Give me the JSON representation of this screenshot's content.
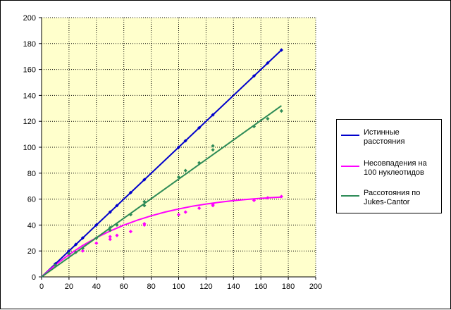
{
  "chart_data": {
    "type": "line",
    "title": "",
    "xlabel": "",
    "ylabel": "",
    "xlim": [
      0,
      200
    ],
    "ylim": [
      0,
      200
    ],
    "xticks": [
      "0",
      "20",
      "40",
      "60",
      "80",
      "100",
      "120",
      "140",
      "160",
      "180",
      "200"
    ],
    "yticks": [
      "0",
      "20",
      "40",
      "60",
      "80",
      "100",
      "120",
      "140",
      "160",
      "180",
      "200"
    ],
    "grid": true,
    "plot_background": "#ffffcc",
    "legend_position": "right",
    "series": [
      {
        "name": "Истинные\nрасстояния",
        "color": "#0000cc",
        "points": [
          [
            10,
            10
          ],
          [
            20,
            20
          ],
          [
            25,
            25
          ],
          [
            30,
            30
          ],
          [
            40,
            40
          ],
          [
            50,
            50
          ],
          [
            55,
            55
          ],
          [
            65,
            65
          ],
          [
            75,
            75
          ],
          [
            100,
            100
          ],
          [
            105,
            105
          ],
          [
            115,
            115
          ],
          [
            125,
            125
          ],
          [
            155,
            155
          ],
          [
            165,
            165
          ],
          [
            175,
            175
          ]
        ],
        "trend": [
          [
            0,
            0
          ],
          [
            175,
            175
          ]
        ]
      },
      {
        "name": "Несовпадения на\n100 нуклеотидов",
        "color": "#ff00ff",
        "points": [
          [
            10,
            9
          ],
          [
            20,
            17
          ],
          [
            25,
            19
          ],
          [
            30,
            20
          ],
          [
            40,
            26
          ],
          [
            50,
            29
          ],
          [
            50,
            31
          ],
          [
            55,
            32
          ],
          [
            65,
            35
          ],
          [
            75,
            40
          ],
          [
            75,
            41
          ],
          [
            100,
            48
          ],
          [
            105,
            50
          ],
          [
            115,
            53
          ],
          [
            125,
            55
          ],
          [
            125,
            56
          ],
          [
            155,
            59
          ],
          [
            165,
            61
          ],
          [
            175,
            62
          ]
        ],
        "trend": [
          [
            0,
            0
          ],
          [
            10,
            9.2
          ],
          [
            20,
            17.2
          ],
          [
            30,
            24.2
          ],
          [
            40,
            30.2
          ],
          [
            50,
            35.4
          ],
          [
            60,
            39.9
          ],
          [
            70,
            43.8
          ],
          [
            80,
            47.1
          ],
          [
            90,
            50
          ],
          [
            100,
            52.4
          ],
          [
            110,
            54.5
          ],
          [
            120,
            56.2
          ],
          [
            130,
            57.6
          ],
          [
            140,
            58.8
          ],
          [
            150,
            59.8
          ],
          [
            160,
            60.6
          ],
          [
            170,
            61.3
          ],
          [
            175,
            61.6
          ]
        ]
      },
      {
        "name": "Рассотояния по\nJukes-Cantor",
        "color": "#2e8b57",
        "points": [
          [
            10,
            9
          ],
          [
            20,
            18
          ],
          [
            25,
            19
          ],
          [
            30,
            22
          ],
          [
            40,
            30
          ],
          [
            50,
            36
          ],
          [
            50,
            38
          ],
          [
            55,
            40
          ],
          [
            65,
            48
          ],
          [
            75,
            55
          ],
          [
            75,
            58
          ],
          [
            100,
            77
          ],
          [
            105,
            82
          ],
          [
            115,
            88
          ],
          [
            125,
            98
          ],
          [
            125,
            101
          ],
          [
            155,
            116
          ],
          [
            165,
            122
          ],
          [
            175,
            128
          ]
        ],
        "trend": [
          [
            0,
            0
          ],
          [
            175,
            132
          ]
        ]
      }
    ]
  }
}
